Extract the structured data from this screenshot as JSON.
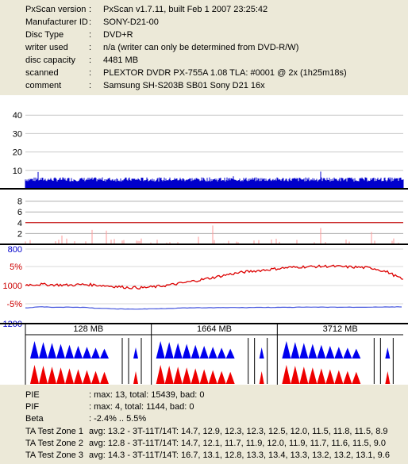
{
  "info": [
    {
      "label": "PxScan version",
      "value": "PxScan v1.7.11, built Feb  1 2007 23:25:42"
    },
    {
      "label": "Manufacturer ID",
      "value": "SONY-D21-00"
    },
    {
      "label": "Disc Type",
      "value": "DVD+R"
    },
    {
      "label": "writer used",
      "value": "n/a (writer can only be determined from DVD-R/W)"
    },
    {
      "label": "disc capacity",
      "value": "4481 MB"
    },
    {
      "label": "scanned",
      "value": "PLEXTOR DVDR PX-755A 1.08 TLA: #0001 @ 2x (1h25m18s)"
    },
    {
      "label": "comment",
      "value": "Samsung SH-S203B SB01 Sony D21 16x"
    }
  ],
  "info_separator": ":",
  "chart_data": [
    {
      "type": "bar",
      "name": "PIE",
      "y_ticks": [
        "40",
        "30",
        "20",
        "10"
      ],
      "ylim": [
        0,
        50
      ],
      "max": 13,
      "baseline": 4,
      "color": "#0000cc"
    },
    {
      "type": "bar",
      "name": "PIF",
      "y_ticks": [
        "8",
        "6",
        "4",
        "2"
      ],
      "ylim": [
        0,
        10
      ],
      "max": 4,
      "limit_line": 4,
      "color": "#ff0000"
    },
    {
      "type": "line",
      "name": "Beta / Jitter",
      "y_ticks_left": [
        {
          "text": "800",
          "color": "#0000cc"
        },
        {
          "text": "5%",
          "color": "#cc0000"
        },
        {
          "text": "1000",
          "color": "#cc0000"
        },
        {
          "text": "-5%",
          "color": "#cc0000"
        },
        {
          "text": "1200",
          "color": "#0000cc"
        }
      ],
      "beta_range": [
        -2.4,
        5.5
      ],
      "beta_series": [
        0.2,
        0.3,
        0.2,
        0.1,
        0.3,
        0.1,
        -0.2,
        -0.5,
        -0.6,
        -0.3,
        0.2,
        0.8,
        1.5,
        2.2,
        3.0,
        3.6,
        4.0,
        4.4,
        4.8,
        5.0,
        5.1,
        5.2,
        5.0,
        4.9,
        4.6,
        3.5,
        1.5
      ],
      "jitter_series": [
        1116,
        1110,
        1112,
        1112,
        1113,
        1118,
        1120,
        1122,
        1122,
        1120,
        1118,
        1116,
        1115,
        1115,
        1114,
        1114,
        1113,
        1113,
        1113,
        1112,
        1112,
        1112,
        1112,
        1112,
        1111,
        1111,
        1110
      ]
    },
    {
      "type": "bar",
      "name": "TA Test",
      "zones": [
        "128 MB",
        "1664 MB",
        "3712 MB"
      ]
    }
  ],
  "stats": [
    {
      "label": "PIE",
      "value": ": max: 13, total: 15439, bad: 0"
    },
    {
      "label": "PIF",
      "value": ": max: 4, total: 1144, bad: 0"
    },
    {
      "label": "Beta",
      "value": ": -2.4% .. 5.5%"
    },
    {
      "label": "TA Test Zone 1",
      "value": "avg: 13.2 - 3T-11T/14T: 14.7, 12.9, 12.3, 12.3, 12.5, 12.0, 11.5, 11.8, 11.5, 8.9"
    },
    {
      "label": "TA Test Zone 2",
      "value": "avg: 12.8 - 3T-11T/14T: 14.7, 12.1, 11.7, 11.9, 12.0, 11.9, 11.7, 11.6, 11.5, 9.0"
    },
    {
      "label": "TA Test Zone 3",
      "value": "avg: 14.3 - 3T-11T/14T: 16.7, 13.1, 12.8, 13.3, 13.4, 13.3, 13.2, 13.2, 13.1, 9.6"
    }
  ]
}
